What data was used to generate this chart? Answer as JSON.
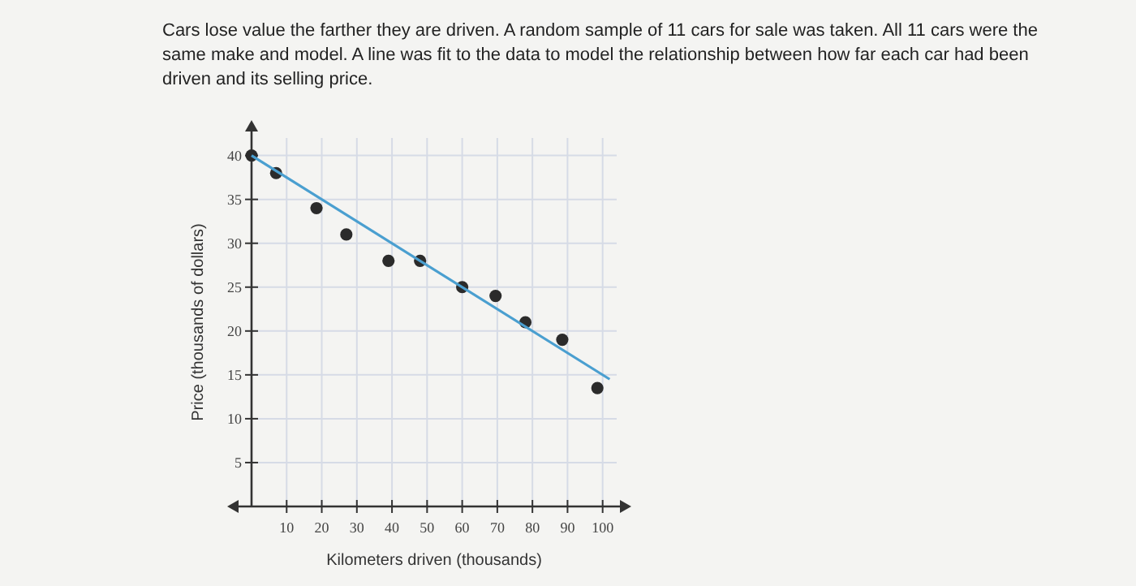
{
  "chart_data": {
    "type": "scatter",
    "title": "Cars lose value the farther they are driven. A random sample of 11 cars for sale was taken. All 11 cars were the same make and model. A line was fit to the data to model the relationship between how far each car had been driven and its selling price.",
    "xlabel": "Kilometers driven (thousands)",
    "ylabel": "Price (thousands of dollars)",
    "series": [
      {
        "color": "#2b2b2b",
        "marker": "circle",
        "x": [
          0,
          7,
          18.5,
          27,
          39,
          48,
          60,
          69.5,
          78,
          88.5,
          98.5
        ],
        "values": [
          40,
          38,
          34,
          31,
          28,
          28,
          25,
          24,
          21,
          19,
          13.5
        ]
      },
      {
        "type": "line",
        "color": "#4a9fd0",
        "x": [
          0,
          102
        ],
        "values": [
          40,
          14.5
        ]
      }
    ],
    "xlim": [
      0,
      104
    ],
    "xticks": [
      10,
      20,
      30,
      40,
      50,
      60,
      70,
      80,
      90,
      100
    ],
    "ylim": [
      0,
      42
    ],
    "yticks": [
      5,
      10,
      15,
      20,
      25,
      30,
      35,
      40
    ],
    "grid": true
  }
}
